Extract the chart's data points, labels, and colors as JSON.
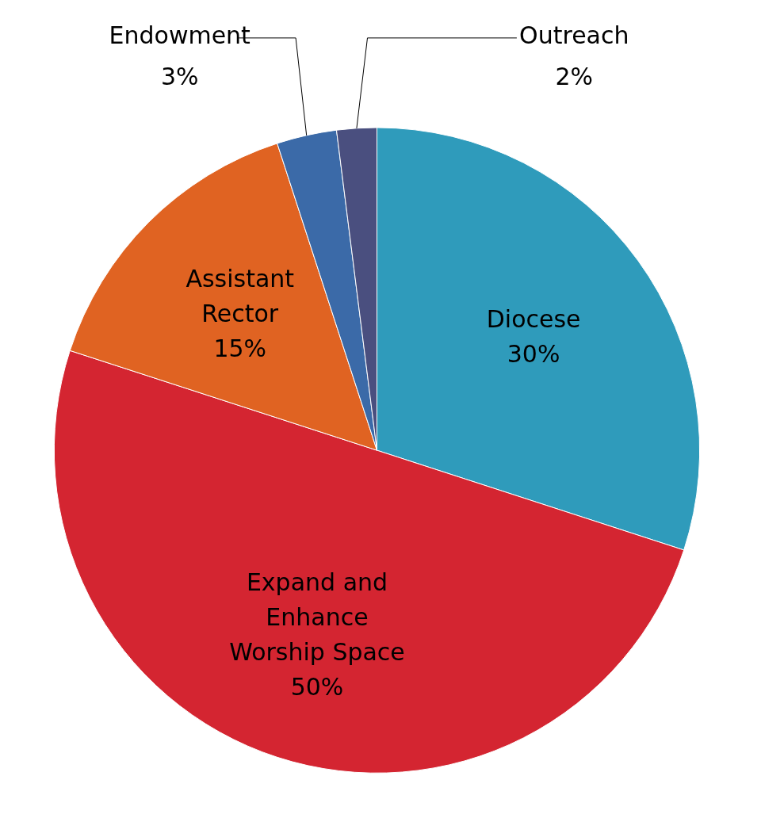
{
  "chart_data": {
    "type": "pie",
    "categories": [
      "Diocese",
      "Expand and Enhance Worship Space",
      "Assistant Rector",
      "Endowment",
      "Outreach"
    ],
    "values": [
      30,
      50,
      15,
      3,
      2
    ],
    "value_labels": [
      "30%",
      "50%",
      "15%",
      "3%",
      "2%"
    ],
    "colors": [
      "#2f9bbb",
      "#d42531",
      "#e06322",
      "#3b6aa8",
      "#4a4f7f"
    ]
  }
}
